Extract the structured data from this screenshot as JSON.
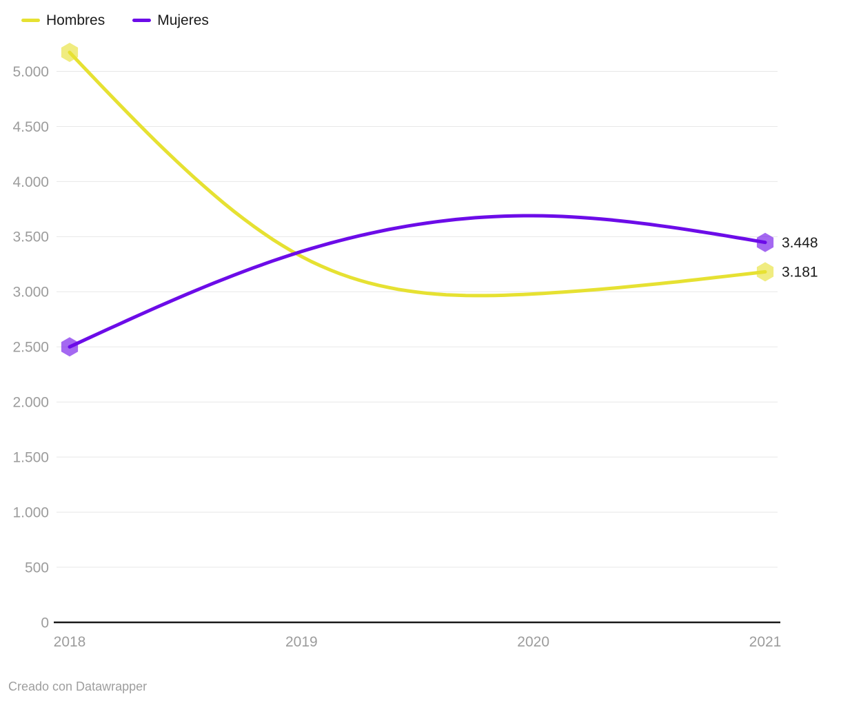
{
  "chart_data": {
    "type": "line",
    "title": "",
    "xlabel": "",
    "ylabel": "",
    "x": [
      "2018",
      "2019",
      "2020",
      "2021"
    ],
    "series": [
      {
        "name": "Hombres",
        "color": "#e6e132",
        "values": [
          5172,
          3320,
          2980,
          3181
        ],
        "end_label": "3.181"
      },
      {
        "name": "Mujeres",
        "color": "#6c0ce8",
        "values": [
          2500,
          3365,
          3690,
          3448
        ],
        "end_label": "3.448"
      }
    ],
    "ylim": [
      0,
      5250
    ],
    "y_ticks": [
      {
        "value": 0,
        "label": "0"
      },
      {
        "value": 500,
        "label": "500"
      },
      {
        "value": 1000,
        "label": "1.000"
      },
      {
        "value": 1500,
        "label": "1.500"
      },
      {
        "value": 2000,
        "label": "2.000"
      },
      {
        "value": 2500,
        "label": "2.500"
      },
      {
        "value": 3000,
        "label": "3.000"
      },
      {
        "value": 3500,
        "label": "3.500"
      },
      {
        "value": 4000,
        "label": "4.000"
      },
      {
        "value": 4500,
        "label": "4.500"
      },
      {
        "value": 5000,
        "label": "5.000"
      }
    ],
    "grid": "horizontal",
    "legend_position": "top-left",
    "curve": "natural-spline",
    "point_shape": "hexagon",
    "markers": "endpoints-only"
  },
  "colors": {
    "gridline": "#e7e7e7",
    "axis_line": "#191919",
    "tick_text": "#9c9c9c",
    "value_label_text": "#1a1a1a"
  },
  "footer": {
    "credit": "Creado con Datawrapper"
  }
}
